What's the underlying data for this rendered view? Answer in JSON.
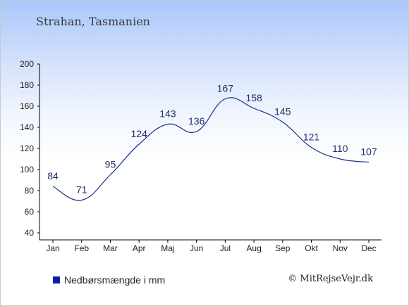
{
  "title": "Strahan, Tasmanien",
  "legend": {
    "label": "Nedbørsmængde i mm"
  },
  "copyright": "© MitRejseVejr.dk",
  "colors": {
    "line": "#1c2c8c",
    "legend_swatch": "#0a1fa0",
    "label": "#1f2f6b"
  },
  "chart_data": {
    "type": "line",
    "categories": [
      "Jan",
      "Feb",
      "Mar",
      "Apr",
      "Maj",
      "Jun",
      "Jul",
      "Aug",
      "Sep",
      "Okt",
      "Nov",
      "Dec"
    ],
    "series": [
      {
        "name": "Nedbørsmængde i mm",
        "values": [
          84,
          71,
          95,
          124,
          143,
          136,
          167,
          158,
          145,
          121,
          110,
          107
        ]
      }
    ],
    "ylim": [
      40,
      200
    ],
    "yticks": [
      40,
      60,
      80,
      100,
      120,
      140,
      160,
      180,
      200
    ],
    "grid": false,
    "legend_position": "bottom-left"
  }
}
